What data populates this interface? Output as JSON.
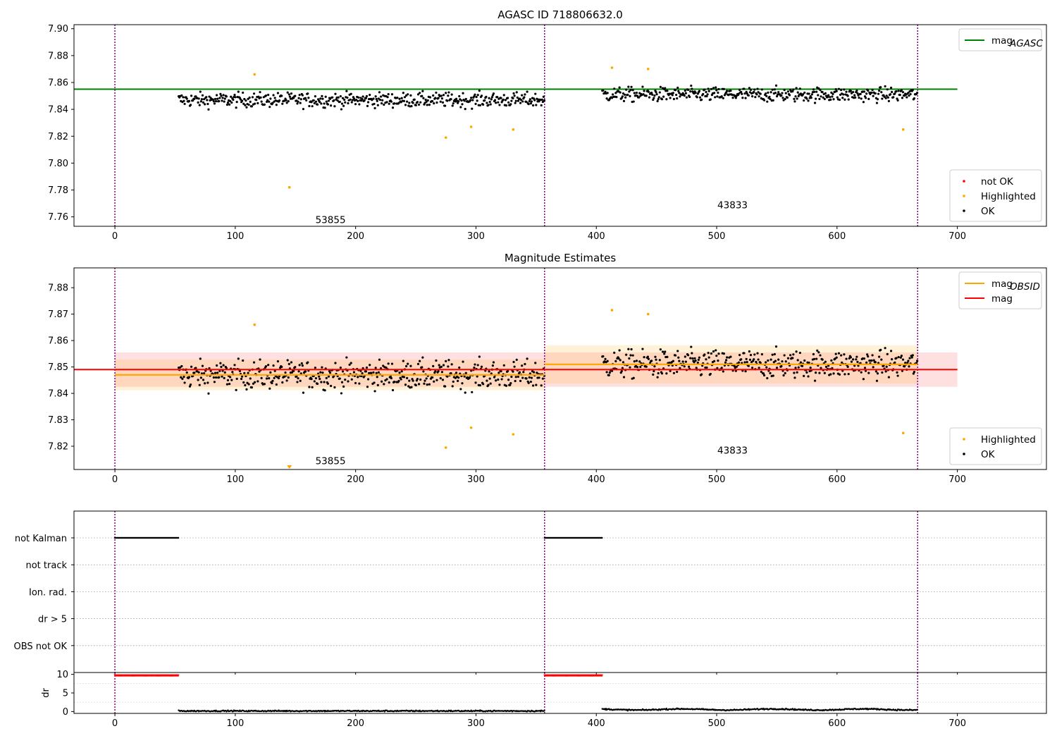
{
  "chart_data": [
    {
      "type": "scatter",
      "title": "AGASC ID 718806632.0",
      "xlim": [
        -34,
        774
      ],
      "ylim": [
        7.753,
        7.903
      ],
      "x_ticks": [
        0,
        100,
        200,
        300,
        400,
        500,
        600,
        700
      ],
      "y_ticks": [
        "7.76",
        "7.78",
        "7.80",
        "7.82",
        "7.84",
        "7.86",
        "7.88",
        "7.90"
      ],
      "obs_boundaries": [
        0,
        357,
        667
      ],
      "obsid_labels": [
        {
          "text": "53855",
          "x": 178,
          "y": 7.758
        },
        {
          "text": "43833",
          "x": 512,
          "y": 7.769
        }
      ],
      "series": [
        {
          "name": "mag_AGASC",
          "type": "line",
          "color": "#008000",
          "x": [
            -34,
            700
          ],
          "y": [
            7.855,
            7.855
          ]
        },
        {
          "name": "Highlighted",
          "type": "scatter",
          "color": "#ffa500",
          "x": [
            116,
            145,
            275,
            296,
            331,
            413,
            443,
            655
          ],
          "y": [
            7.866,
            7.782,
            7.819,
            7.827,
            7.825,
            7.871,
            7.87,
            7.825
          ]
        }
      ],
      "ok_segments": [
        {
          "x": [
            53,
            357
          ],
          "mean": 7.847,
          "noise": 0.0055
        },
        {
          "x": [
            405,
            667
          ],
          "mean": 7.851,
          "noise": 0.0055
        }
      ],
      "legend_top": {
        "position": "top-right",
        "entries": [
          {
            "label": "mag",
            "sub": "AGASC",
            "color": "#008000"
          }
        ]
      },
      "legend_bottom": {
        "position": "lower-right",
        "entries": [
          {
            "label": "not OK",
            "color": "#ff0000"
          },
          {
            "label": "Highlighted",
            "color": "#ffa500"
          },
          {
            "label": "OK",
            "color": "#000000"
          }
        ]
      }
    },
    {
      "type": "scatter",
      "title": "Magnitude Estimates",
      "xlim": [
        -34,
        774
      ],
      "ylim": [
        7.8112,
        7.8875
      ],
      "x_ticks": [
        0,
        100,
        200,
        300,
        400,
        500,
        600,
        700
      ],
      "y_ticks": [
        "7.82",
        "7.83",
        "7.84",
        "7.85",
        "7.86",
        "7.87",
        "7.88"
      ],
      "obs_boundaries": [
        0,
        357,
        667
      ],
      "obsid_labels": [
        {
          "text": "53855",
          "x": 178,
          "y": 7.8145
        },
        {
          "text": "43833",
          "x": 512,
          "y": 7.8185
        }
      ],
      "mag_band": {
        "center": 7.849,
        "half": 0.0065,
        "x": [
          0,
          700
        ],
        "color": "#ff0000"
      },
      "obsid_bands": [
        {
          "x": [
            0,
            357
          ],
          "center": 7.847,
          "half": 0.0058
        },
        {
          "x": [
            357,
            667
          ],
          "center": 7.851,
          "half": 0.0072
        }
      ],
      "series": [
        {
          "name": "mag_OBSID",
          "type": "step",
          "color": "#ffa500",
          "segments": [
            {
              "x": [
                0,
                357
              ],
              "y": 7.847
            },
            {
              "x": [
                357,
                667
              ],
              "y": 7.851
            }
          ]
        },
        {
          "name": "mag",
          "type": "line",
          "color": "#ff0000",
          "x": [
            -34,
            700
          ],
          "y": [
            7.849,
            7.849
          ]
        },
        {
          "name": "Highlighted",
          "type": "scatter",
          "color": "#ffa500",
          "x": [
            116,
            275,
            296,
            331,
            413,
            443,
            655
          ],
          "y": [
            7.866,
            7.8195,
            7.827,
            7.8245,
            7.8715,
            7.87,
            7.825
          ]
        }
      ],
      "clipped_marker": {
        "x": 145,
        "color": "#ffa500"
      },
      "legend_top": {
        "position": "top-right",
        "entries": [
          {
            "label": "mag",
            "sub": "OBSID",
            "color": "#ffa500"
          },
          {
            "label": "mag",
            "sub": "",
            "color": "#ff0000"
          }
        ]
      },
      "legend_bottom": {
        "position": "lower-right",
        "entries": [
          {
            "label": "Highlighted",
            "color": "#ffa500"
          },
          {
            "label": "OK",
            "color": "#000000"
          }
        ]
      }
    },
    {
      "type": "scatter",
      "title": "",
      "xlim": [
        -34,
        774
      ],
      "flag_rows": [
        "not Kalman",
        "not track",
        "Ion. rad.",
        "dr > 5",
        "OBS not OK"
      ],
      "flag_segments": [
        {
          "row": "not Kalman",
          "x": [
            0,
            53
          ]
        },
        {
          "row": "not Kalman",
          "x": [
            357,
            405
          ]
        }
      ],
      "obs_boundaries": [
        0,
        357,
        667
      ]
    },
    {
      "type": "scatter",
      "title": "",
      "xlim": [
        -34,
        774
      ],
      "ylim": [
        -0.5,
        10.5
      ],
      "ylabel": "dr",
      "x_ticks": [
        0,
        100,
        200,
        300,
        400,
        500,
        600,
        700
      ],
      "y_ticks": [
        "0",
        "5",
        "10"
      ],
      "clipped_segments": [
        {
          "x": [
            0,
            53
          ],
          "y": 9.6,
          "color": "#ff0000"
        },
        {
          "x": [
            357,
            405
          ],
          "y": 9.6,
          "color": "#ff0000"
        }
      ],
      "dr_segments": [
        {
          "x": [
            53,
            357
          ],
          "base": 0.15
        },
        {
          "x": [
            405,
            667
          ],
          "base": 0.55
        }
      ],
      "obs_boundaries": [
        0,
        357,
        667
      ]
    }
  ]
}
